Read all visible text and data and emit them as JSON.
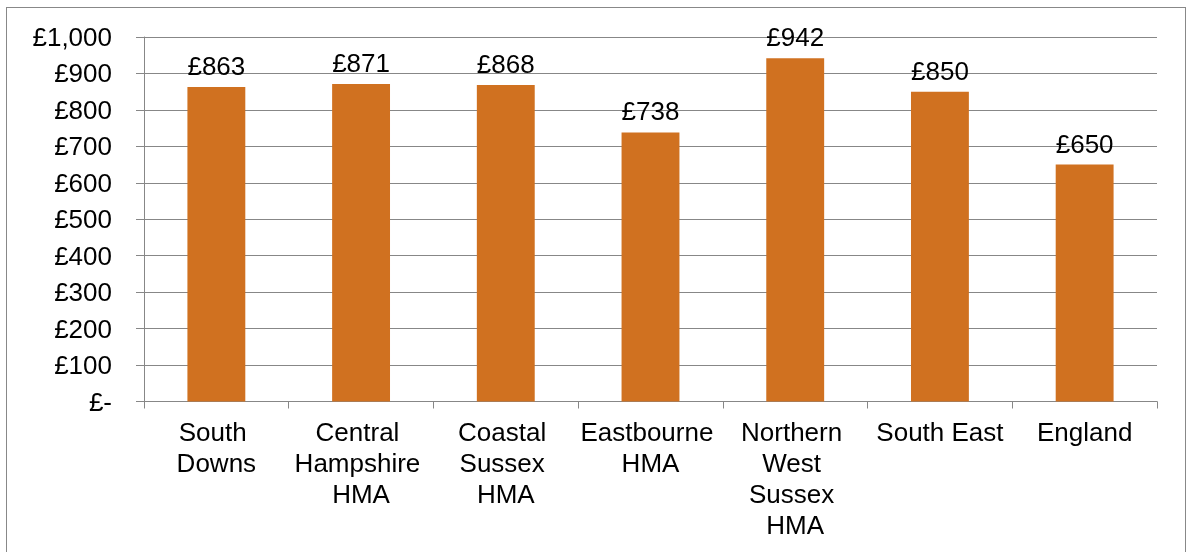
{
  "chart_data": {
    "type": "bar",
    "categories": [
      "South Downs",
      "Central Hampshire HMA",
      "Coastal Sussex HMA",
      "Eastbourne HMA",
      "Northern West Sussex HMA",
      "South East",
      "England"
    ],
    "values": [
      863,
      871,
      868,
      738,
      942,
      850,
      650
    ],
    "value_labels": [
      "£863",
      "£871",
      "£868",
      "£738",
      "£942",
      "£850",
      "£650"
    ],
    "color": "#d07120",
    "ylim": [
      0,
      1000
    ],
    "yticks": [
      {
        "value": 0,
        "label": "£-"
      },
      {
        "value": 100,
        "label": "£100"
      },
      {
        "value": 200,
        "label": "£200"
      },
      {
        "value": 300,
        "label": "£300"
      },
      {
        "value": 400,
        "label": "£400"
      },
      {
        "value": 500,
        "label": "£500"
      },
      {
        "value": 600,
        "label": "£600"
      },
      {
        "value": 700,
        "label": "£700"
      },
      {
        "value": 800,
        "label": "£800"
      },
      {
        "value": 900,
        "label": "£900"
      },
      {
        "value": 1000,
        "label": "£1,000"
      }
    ],
    "grid": "y"
  }
}
